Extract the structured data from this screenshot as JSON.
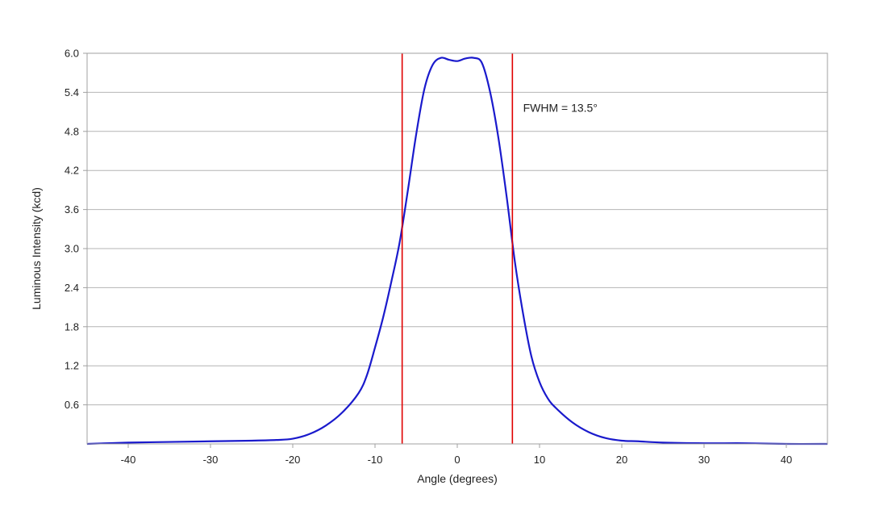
{
  "chart_data": {
    "type": "line",
    "title": "",
    "xlabel": "Angle (degrees)",
    "ylabel": "Luminous Intensity (kcd)",
    "xlim": [
      -45,
      45
    ],
    "ylim": [
      0,
      6.0
    ],
    "x_ticks": [
      -40,
      -30,
      -20,
      -10,
      0,
      10,
      20,
      30,
      40
    ],
    "x_tick_labels": [
      "-40",
      "-30",
      "-20",
      "-10",
      "0",
      "10",
      "20",
      "30",
      "40"
    ],
    "y_ticks": [
      0.6,
      1.2,
      1.8,
      2.4,
      3.0,
      3.6,
      4.2,
      4.8,
      5.4,
      6.0
    ],
    "y_tick_labels": [
      "0.6",
      "1.2",
      "1.8",
      "2.4",
      "3.0",
      "3.6",
      "4.2",
      "4.8",
      "5.4",
      "6.0"
    ],
    "grid": {
      "horizontal": true,
      "vertical": false
    },
    "legend": "none",
    "series": [
      {
        "color": "#1a1acc",
        "x": [
          -45,
          -40,
          -35,
          -30,
          -25,
          -22,
          -20,
          -18,
          -16,
          -14,
          -12,
          -11,
          -10,
          -9,
          -8,
          -7,
          -6,
          -5,
          -4,
          -3,
          -2,
          -1,
          0,
          1,
          2,
          3,
          4,
          5,
          6,
          7,
          8,
          9,
          10,
          11,
          12,
          14,
          16,
          18,
          20,
          22,
          25,
          30,
          35,
          40,
          45
        ],
        "y": [
          0.0,
          0.02,
          0.03,
          0.04,
          0.05,
          0.06,
          0.08,
          0.15,
          0.28,
          0.48,
          0.78,
          1.05,
          1.48,
          1.95,
          2.5,
          3.1,
          3.9,
          4.75,
          5.45,
          5.82,
          5.93,
          5.9,
          5.88,
          5.92,
          5.93,
          5.85,
          5.4,
          4.7,
          3.8,
          2.8,
          2.0,
          1.35,
          0.95,
          0.7,
          0.55,
          0.33,
          0.18,
          0.09,
          0.05,
          0.04,
          0.02,
          0.01,
          0.01,
          0.0,
          0.0
        ]
      }
    ],
    "vlines": [
      {
        "x": -6.7,
        "color": "#e00000"
      },
      {
        "x": 6.7,
        "color": "#e00000"
      }
    ],
    "annotation": {
      "text": "FWHM = 13.5°",
      "x": 8,
      "y": 5.1
    }
  }
}
